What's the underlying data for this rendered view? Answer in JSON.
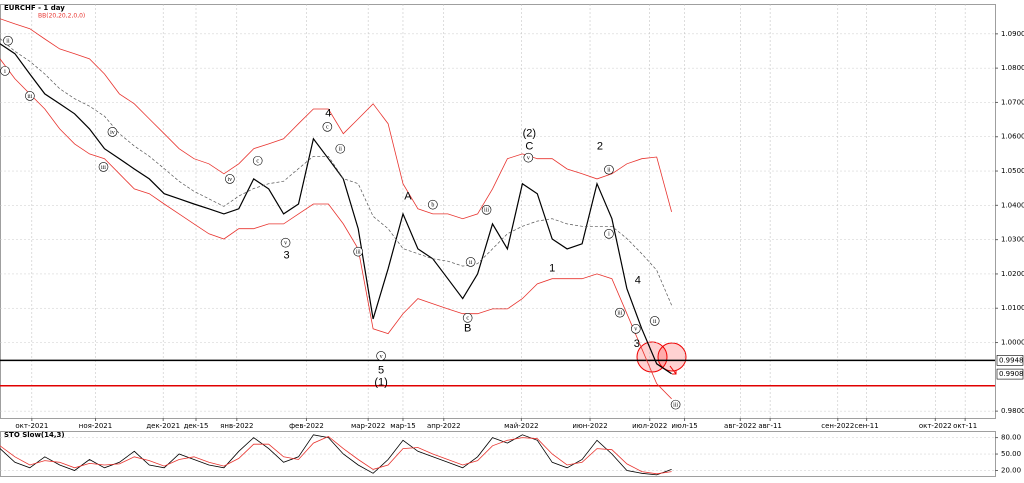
{
  "chart_data": [
    {
      "type": "line",
      "title": "EURCHF - 1 day",
      "subtitle": "BB(20,20,2,0,0)",
      "grid": true,
      "x": [
        0,
        1.5,
        3,
        4.5,
        6,
        7.5,
        9,
        10.5,
        12,
        13.5,
        15,
        16.5,
        18,
        19.5,
        21,
        22.5,
        24,
        25.5,
        27,
        28.5,
        30,
        31.5,
        33,
        34.5,
        36,
        37.5,
        39,
        40.5,
        42,
        43.5,
        45,
        46.5,
        48,
        49.5,
        51,
        52.5,
        54,
        55.5,
        57,
        58.5,
        60,
        61.5,
        63,
        64.5,
        66,
        67.5
      ],
      "xlim": [
        0,
        100
      ],
      "xticks": [
        {
          "value": 3.2,
          "label": "окт-2021"
        },
        {
          "value": 9.6,
          "label": "ноя-2021"
        },
        {
          "value": 16.4,
          "label": "дек-2021"
        },
        {
          "value": 19.7,
          "label": "дек-15"
        },
        {
          "value": 23.8,
          "label": "янв-2022"
        },
        {
          "value": 30.8,
          "label": "фев-2022"
        },
        {
          "value": 37.0,
          "label": "мар-2022"
        },
        {
          "value": 40.5,
          "label": "мар-15"
        },
        {
          "value": 44.6,
          "label": "апр-2022"
        },
        {
          "value": 52.4,
          "label": "май-2022"
        },
        {
          "value": 59.3,
          "label": "июн-2022"
        },
        {
          "value": 65.3,
          "label": "июл-2022"
        },
        {
          "value": 68.8,
          "label": "июл-15"
        },
        {
          "value": 74.4,
          "label": "авг-2022"
        },
        {
          "value": 77.4,
          "label": "авг-11"
        },
        {
          "value": 84.2,
          "label": "сен-2022"
        },
        {
          "value": 87.1,
          "label": "сен-11"
        },
        {
          "value": 94.0,
          "label": "окт-2022"
        },
        {
          "value": 97.0,
          "label": "окт-11"
        }
      ],
      "ylim": [
        0.978,
        1.0987
      ],
      "yticks": [
        {
          "value": 1.09,
          "label": "1.0900"
        },
        {
          "value": 1.08,
          "label": "1.0800"
        },
        {
          "value": 1.07,
          "label": "1.0700"
        },
        {
          "value": 1.06,
          "label": "1.0600"
        },
        {
          "value": 1.05,
          "label": "1.0500"
        },
        {
          "value": 1.04,
          "label": "1.0400"
        },
        {
          "value": 1.03,
          "label": "1.0300"
        },
        {
          "value": 1.02,
          "label": "1.0200"
        },
        {
          "value": 1.01,
          "label": "1.0100"
        },
        {
          "value": 1.0,
          "label": "1.0000"
        },
        {
          "value": 0.98,
          "label": "0.9800"
        }
      ],
      "series": [
        {
          "color": "#000000",
          "width": 1.2,
          "values": [
            1.0871,
            1.0842,
            1.0783,
            1.0725,
            1.0696,
            1.0667,
            1.0623,
            1.0565,
            1.0536,
            1.0506,
            1.0477,
            1.0434,
            1.0419,
            1.0404,
            1.039,
            1.0375,
            1.039,
            1.0477,
            1.0448,
            1.0375,
            1.0404,
            1.0594,
            1.0536,
            1.0477,
            1.0332,
            1.0069,
            1.0215,
            1.0375,
            1.0273,
            1.0244,
            1.0186,
            1.0128,
            1.02,
            1.0346,
            1.0273,
            1.0463,
            1.0434,
            1.0302,
            1.0273,
            1.0288,
            1.0463,
            1.0361,
            1.0157,
            1.004,
            0.9938,
            0.9909
          ]
        },
        {
          "color": "#e8342f",
          "width": 0.8,
          "values": [
            1.0944,
            1.0929,
            1.0915,
            1.0885,
            1.0856,
            1.0842,
            1.0827,
            1.0783,
            1.0725,
            1.0696,
            1.0652,
            1.0609,
            1.0565,
            1.0536,
            1.0521,
            1.0492,
            1.0521,
            1.0565,
            1.0579,
            1.0594,
            1.0638,
            1.0681,
            1.0681,
            1.0609,
            1.0652,
            1.0696,
            1.0638,
            1.0463,
            1.039,
            1.0375,
            1.0375,
            1.0361,
            1.0375,
            1.0448,
            1.0536,
            1.055,
            1.0536,
            1.0536,
            1.0506,
            1.0492,
            1.0477,
            1.0492,
            1.0521,
            1.0536,
            1.0541,
            1.0381
          ]
        },
        {
          "color": "#555555",
          "width": 0.7,
          "dashed": true,
          "values": [
            1.0886,
            1.0849,
            1.082,
            1.0783,
            1.074,
            1.0711,
            1.0689,
            1.066,
            1.0609,
            1.0573,
            1.0543,
            1.0507,
            1.047,
            1.0441,
            1.0419,
            1.0397,
            1.0427,
            1.0449,
            1.0463,
            1.047,
            1.0507,
            1.0543,
            1.0543,
            1.0478,
            1.0463,
            1.0368,
            1.0332,
            1.0274,
            1.0259,
            1.0244,
            1.0237,
            1.0223,
            1.023,
            1.0273,
            1.0317,
            1.0339,
            1.0354,
            1.0361,
            1.0346,
            1.0339,
            1.0339,
            1.0339,
            1.0303,
            1.0259,
            1.0211,
            1.0109
          ]
        },
        {
          "color": "#e8342f",
          "width": 0.8,
          "values": [
            1.0827,
            1.0769,
            1.0725,
            1.0681,
            1.0623,
            1.0579,
            1.055,
            1.0536,
            1.0492,
            1.0448,
            1.0434,
            1.0404,
            1.0375,
            1.0346,
            1.0317,
            1.0302,
            1.0332,
            1.0332,
            1.0346,
            1.0346,
            1.0375,
            1.0404,
            1.0404,
            1.0346,
            1.0273,
            1.004,
            1.0026,
            1.0084,
            1.0128,
            1.0113,
            1.0098,
            1.0084,
            1.0084,
            1.0098,
            1.0098,
            1.0128,
            1.0171,
            1.0186,
            1.0186,
            1.0186,
            1.02,
            1.0186,
            1.0084,
            0.9982,
            0.988,
            0.9836
          ]
        }
      ],
      "levels": [
        {
          "value": 0.9948,
          "color": "#000000"
        },
        {
          "value": 0.9874,
          "color": "#e00000"
        }
      ],
      "price_tags": [
        {
          "value": 0.9948,
          "label": "0.9948"
        },
        {
          "value": 0.9908,
          "label": "0.9908"
        }
      ],
      "annotations": [
        {
          "text": "4",
          "x": 33.0,
          "y": 1.0667
        },
        {
          "text": "3",
          "x": 28.8,
          "y": 1.0253
        },
        {
          "text": "A",
          "x": 41.0,
          "y": 1.0425
        },
        {
          "text": "B",
          "x": 47.0,
          "y": 1.004
        },
        {
          "text": "5",
          "x": 38.3,
          "y": 0.9918
        },
        {
          "text": "(1)",
          "x": 38.3,
          "y": 0.9883
        },
        {
          "text": "(2)",
          "x": 53.2,
          "y": 1.0609
        },
        {
          "text": "C",
          "x": 53.2,
          "y": 1.0571
        },
        {
          "text": "2",
          "x": 60.3,
          "y": 1.0571
        },
        {
          "text": "1",
          "x": 55.5,
          "y": 1.0215
        },
        {
          "text": "3",
          "x": 64.0,
          "y": 0.9996
        },
        {
          "text": "4",
          "x": 64.1,
          "y": 1.018
        },
        {
          "text": "ii",
          "x": 0.8,
          "y": 1.088,
          "style": "circled"
        },
        {
          "text": "i",
          "x": 0.5,
          "y": 1.0792,
          "style": "circled"
        },
        {
          "text": "iii",
          "x": 3.0,
          "y": 1.0719,
          "style": "circled"
        },
        {
          "text": "iv",
          "x": 11.3,
          "y": 1.0614,
          "style": "circled"
        },
        {
          "text": "iii",
          "x": 10.4,
          "y": 1.0512,
          "style": "circled"
        },
        {
          "text": "iv",
          "x": 23.1,
          "y": 1.0477,
          "style": "circled"
        },
        {
          "text": "c",
          "x": 25.9,
          "y": 1.053,
          "style": "circled"
        },
        {
          "text": "v",
          "x": 28.7,
          "y": 1.0291,
          "style": "circled"
        },
        {
          "text": "c",
          "x": 32.9,
          "y": 1.0629,
          "style": "circled"
        },
        {
          "text": "ii",
          "x": 34.2,
          "y": 1.0565,
          "style": "circled"
        },
        {
          "text": "iii",
          "x": 36.0,
          "y": 1.0265,
          "style": "circled"
        },
        {
          "text": "v",
          "x": 38.3,
          "y": 0.9961,
          "style": "circled"
        },
        {
          "text": "b",
          "x": 43.5,
          "y": 1.0402,
          "style": "circled"
        },
        {
          "text": "ii",
          "x": 47.3,
          "y": 1.0235,
          "style": "circled"
        },
        {
          "text": "iii",
          "x": 48.9,
          "y": 1.0387,
          "style": "circled"
        },
        {
          "text": "c",
          "x": 47.0,
          "y": 1.0072,
          "style": "circled"
        },
        {
          "text": "v",
          "x": 53.1,
          "y": 1.0539,
          "style": "circled"
        },
        {
          "text": "ii",
          "x": 61.2,
          "y": 1.0504,
          "style": "circled"
        },
        {
          "text": "i",
          "x": 61.2,
          "y": 1.0317,
          "style": "circled"
        },
        {
          "text": "iii",
          "x": 62.3,
          "y": 1.0087,
          "style": "circled"
        },
        {
          "text": "v",
          "x": 63.9,
          "y": 1.004,
          "style": "circled"
        },
        {
          "text": "ii",
          "x": 65.8,
          "y": 1.0063,
          "style": "circled"
        },
        {
          "text": "iii",
          "x": 67.9,
          "y": 0.9819,
          "style": "circled"
        }
      ]
    },
    {
      "type": "line",
      "title": "STO Slow(14,3)",
      "grid": true,
      "x": [
        0,
        1.5,
        3,
        4.5,
        6,
        7.5,
        9,
        10.5,
        12,
        13.5,
        15,
        16.5,
        18,
        19.5,
        21,
        22.5,
        24,
        25.5,
        27,
        28.5,
        30,
        31.5,
        33,
        34.5,
        36,
        37.5,
        39,
        40.5,
        42,
        43.5,
        45,
        46.5,
        48,
        49.5,
        51,
        52.5,
        54,
        55.5,
        57,
        58.5,
        60,
        61.5,
        63,
        64.5,
        66,
        67.5
      ],
      "xlim": [
        0,
        100
      ],
      "ylim": [
        10,
        92
      ],
      "yticks": [
        {
          "value": 80,
          "label": "80.00"
        },
        {
          "value": 50,
          "label": "50.00"
        },
        {
          "value": 20,
          "label": "20.00"
        }
      ],
      "series": [
        {
          "color": "#000000",
          "width": 0.8,
          "values": [
            60,
            35,
            25,
            45,
            30,
            20,
            40,
            25,
            35,
            55,
            30,
            25,
            50,
            40,
            30,
            25,
            55,
            80,
            60,
            35,
            45,
            85,
            80,
            50,
            30,
            15,
            40,
            75,
            55,
            45,
            35,
            25,
            45,
            80,
            70,
            85,
            75,
            35,
            25,
            40,
            75,
            50,
            20,
            15,
            12,
            22
          ]
        },
        {
          "color": "#e8342f",
          "width": 0.8,
          "values": [
            65,
            45,
            30,
            38,
            35,
            25,
            33,
            30,
            32,
            45,
            38,
            28,
            40,
            45,
            35,
            28,
            42,
            68,
            68,
            45,
            40,
            70,
            82,
            60,
            40,
            22,
            30,
            60,
            62,
            50,
            40,
            30,
            38,
            65,
            75,
            80,
            78,
            50,
            30,
            35,
            60,
            58,
            32,
            18,
            14,
            18
          ]
        }
      ]
    }
  ]
}
